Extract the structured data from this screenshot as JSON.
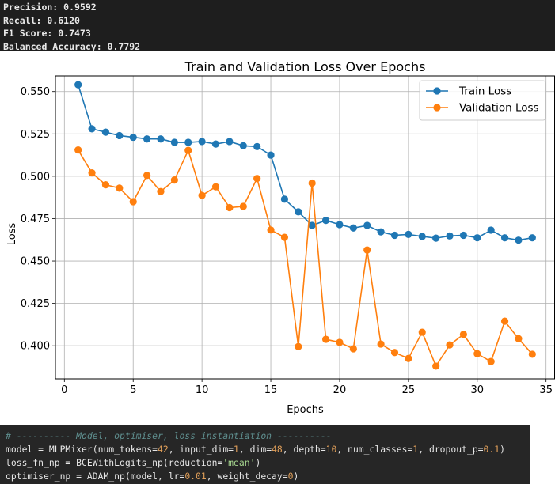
{
  "metrics": [
    "Precision: 0.9592",
    "Recall: 0.6120",
    "F1 Score: 0.7473",
    "Balanced Accuracy: 0.7792"
  ],
  "chart_data": {
    "type": "line",
    "title": "Train and Validation Loss Over Epochs",
    "xlabel": "Epochs",
    "ylabel": "Loss",
    "xlim": [
      -0.65,
      35.65
    ],
    "ylim": [
      0.3805,
      0.5592
    ],
    "x_ticks": [
      0,
      5,
      10,
      15,
      20,
      25,
      30,
      35
    ],
    "y_ticks": [
      0.4,
      0.425,
      0.45,
      0.475,
      0.5,
      0.525,
      0.55
    ],
    "x_tick_labels": [
      "0",
      "5",
      "10",
      "15",
      "20",
      "25",
      "30",
      "35"
    ],
    "y_tick_labels": [
      "0.400",
      "0.425",
      "0.450",
      "0.475",
      "0.500",
      "0.525",
      "0.550"
    ],
    "grid": true,
    "legend_position": "top-right",
    "x": [
      1,
      2,
      3,
      4,
      5,
      6,
      7,
      8,
      9,
      10,
      11,
      12,
      13,
      14,
      15,
      16,
      17,
      18,
      19,
      20,
      21,
      22,
      23,
      24,
      25,
      26,
      27,
      28,
      29,
      30,
      31,
      32,
      33,
      34
    ],
    "series": [
      {
        "name": "Train Loss",
        "color": "#1f77b4",
        "values": [
          0.554,
          0.528,
          0.526,
          0.524,
          0.523,
          0.522,
          0.522,
          0.52,
          0.52,
          0.5205,
          0.519,
          0.5205,
          0.518,
          0.5175,
          0.5125,
          0.4865,
          0.479,
          0.471,
          0.474,
          0.4715,
          0.4695,
          0.471,
          0.4672,
          0.4652,
          0.4657,
          0.4645,
          0.4635,
          0.4648,
          0.4652,
          0.4637,
          0.4682,
          0.4637,
          0.4623,
          0.4637
        ]
      },
      {
        "name": "Validation Loss",
        "color": "#ff7f0e",
        "values": [
          0.5155,
          0.502,
          0.495,
          0.493,
          0.485,
          0.5005,
          0.491,
          0.4978,
          0.5153,
          0.4887,
          0.4938,
          0.4815,
          0.4822,
          0.4987,
          0.4683,
          0.464,
          0.3995,
          0.496,
          0.4038,
          0.402,
          0.3982,
          0.4565,
          0.401,
          0.396,
          0.3925,
          0.408,
          0.388,
          0.4005,
          0.4067,
          0.3953,
          0.3907,
          0.4145,
          0.4042,
          0.395
        ]
      }
    ]
  },
  "code": {
    "comment": "# ---------- Model, optimiser, loss instantiation ----------",
    "line1": {
      "p1": "model = MLPMixer(num_tokens=",
      "v1": "42",
      "p2": ", input_dim=",
      "v2": "1",
      "p3": ", dim=",
      "v3": "48",
      "p4": ", depth=",
      "v4": "10",
      "p5": ", num_classes=",
      "v5": "1",
      "p6": ", dropout_p=",
      "v6": "0.1",
      "p7": ")"
    },
    "line2": {
      "p1": "loss_fn_np = BCEWithLogits_np(reduction=",
      "s1": "'mean'",
      "p2": ")"
    },
    "line3": {
      "p1": "optimiser_np = ADAM_np(model, lr=",
      "v1": "0.01",
      "p2": ", weight_decay=",
      "v2": "0",
      "p3": ")"
    }
  }
}
